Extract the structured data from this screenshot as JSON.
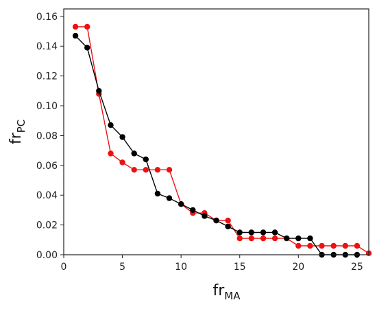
{
  "chart_data": {
    "type": "line",
    "title": "",
    "xlabel": {
      "main": "fr",
      "sub": "MA"
    },
    "ylabel": {
      "main": "fr",
      "sub": "PC"
    },
    "xlim": [
      0,
      26
    ],
    "ylim": [
      0,
      0.165
    ],
    "x_ticks": [
      0,
      5,
      10,
      15,
      20,
      25
    ],
    "y_ticks": [
      "0.00",
      "0.02",
      "0.04",
      "0.06",
      "0.08",
      "0.10",
      "0.12",
      "0.14",
      "0.16"
    ],
    "grid": false,
    "legend": "none",
    "series": [
      {
        "color": "#ee1111",
        "points": [
          [
            1,
            0.153
          ],
          [
            2,
            0.153
          ],
          [
            3,
            0.108
          ],
          [
            4,
            0.068
          ],
          [
            5,
            0.062
          ],
          [
            6,
            0.057
          ],
          [
            7,
            0.057
          ],
          [
            8,
            0.057
          ],
          [
            9,
            0.057
          ],
          [
            10,
            0.034
          ],
          [
            11,
            0.028
          ],
          [
            12,
            0.028
          ],
          [
            13,
            0.023
          ],
          [
            14,
            0.023
          ],
          [
            15,
            0.011
          ],
          [
            16,
            0.011
          ],
          [
            17,
            0.011
          ],
          [
            18,
            0.011
          ],
          [
            19,
            0.011
          ],
          [
            20,
            0.006
          ],
          [
            21,
            0.006
          ],
          [
            22,
            0.006
          ],
          [
            23,
            0.006
          ],
          [
            24,
            0.006
          ],
          [
            25,
            0.006
          ],
          [
            26,
            0.001
          ]
        ]
      },
      {
        "color": "#000000",
        "points": [
          [
            1,
            0.147
          ],
          [
            2,
            0.139
          ],
          [
            3,
            0.11
          ],
          [
            4,
            0.087
          ],
          [
            5,
            0.079
          ],
          [
            6,
            0.068
          ],
          [
            7,
            0.064
          ],
          [
            8,
            0.041
          ],
          [
            9,
            0.038
          ],
          [
            10,
            0.034
          ],
          [
            11,
            0.03
          ],
          [
            12,
            0.026
          ],
          [
            13,
            0.023
          ],
          [
            14,
            0.019
          ],
          [
            15,
            0.015
          ],
          [
            16,
            0.015
          ],
          [
            17,
            0.015
          ],
          [
            18,
            0.015
          ],
          [
            19,
            0.011
          ],
          [
            20,
            0.011
          ],
          [
            21,
            0.011
          ],
          [
            22,
            0.0
          ],
          [
            23,
            0.0
          ],
          [
            24,
            0.0
          ],
          [
            25,
            0.0
          ]
        ]
      }
    ]
  }
}
